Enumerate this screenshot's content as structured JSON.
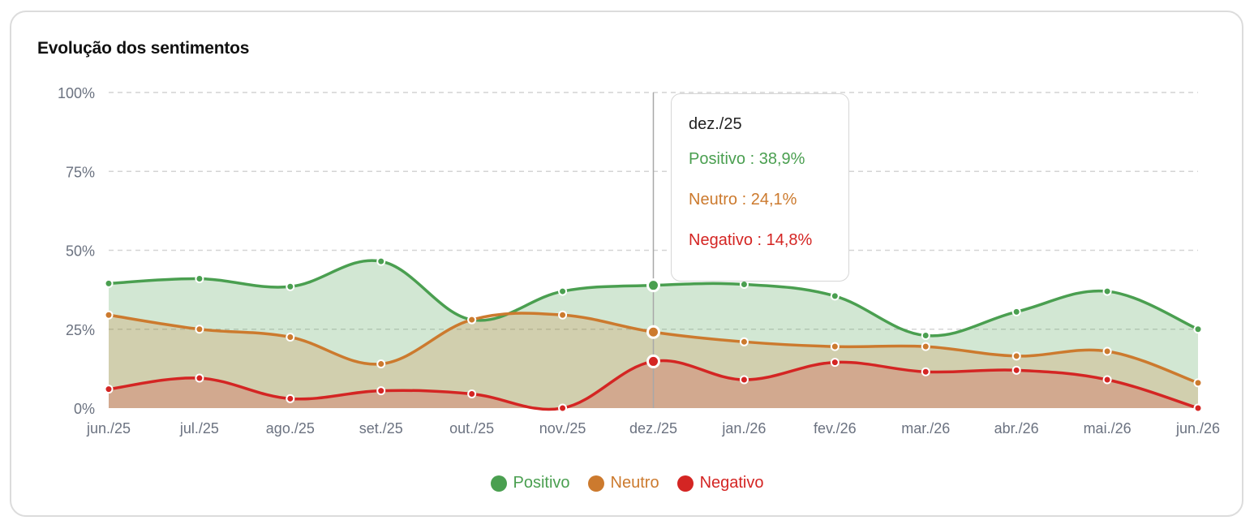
{
  "title": "Evolução dos sentimentos",
  "colors": {
    "positivo": "#4a9f50",
    "neutro": "#cc7a2e",
    "negativo": "#d42523",
    "grid": "#d4d4d4",
    "axis_text": "#6b7280"
  },
  "tooltip": {
    "title": "dez./25",
    "rows": [
      {
        "label": "Positivo : 38,9%",
        "series": "positivo"
      },
      {
        "label": "Neutro : 24,1%",
        "series": "neutro"
      },
      {
        "label": "Negativo : 14,8%",
        "series": "negativo"
      }
    ]
  },
  "legend": [
    {
      "label": "Positivo",
      "series": "positivo"
    },
    {
      "label": "Neutro",
      "series": "neutro"
    },
    {
      "label": "Negativo",
      "series": "negativo"
    }
  ],
  "chart_data": {
    "type": "area",
    "title": "Evolução dos sentimentos",
    "categories": [
      "jun./25",
      "jul./25",
      "ago./25",
      "set./25",
      "out./25",
      "nov./25",
      "dez./25",
      "jan./26",
      "fev./26",
      "mar./26",
      "abr./26",
      "mai./26",
      "jun./26"
    ],
    "yticks": [
      "0%",
      "25%",
      "50%",
      "75%",
      "100%"
    ],
    "ylim": [
      0,
      100
    ],
    "grid": true,
    "legend_position": "bottom-center",
    "highlight_index": 6,
    "series": [
      {
        "name": "Positivo",
        "key": "positivo",
        "values": [
          39.5,
          41.0,
          38.5,
          46.5,
          28.0,
          37.0,
          38.9,
          39.2,
          35.5,
          23.0,
          30.5,
          37.0,
          25.0
        ]
      },
      {
        "name": "Neutro",
        "key": "neutro",
        "values": [
          29.5,
          25.0,
          22.5,
          14.0,
          28.0,
          29.5,
          24.1,
          21.0,
          19.5,
          19.5,
          16.5,
          18.0,
          8.0
        ]
      },
      {
        "name": "Negativo",
        "key": "negativo",
        "values": [
          6.0,
          9.5,
          3.0,
          5.5,
          4.5,
          0.0,
          14.8,
          9.0,
          14.5,
          11.5,
          12.0,
          9.0,
          0.0
        ]
      }
    ]
  }
}
